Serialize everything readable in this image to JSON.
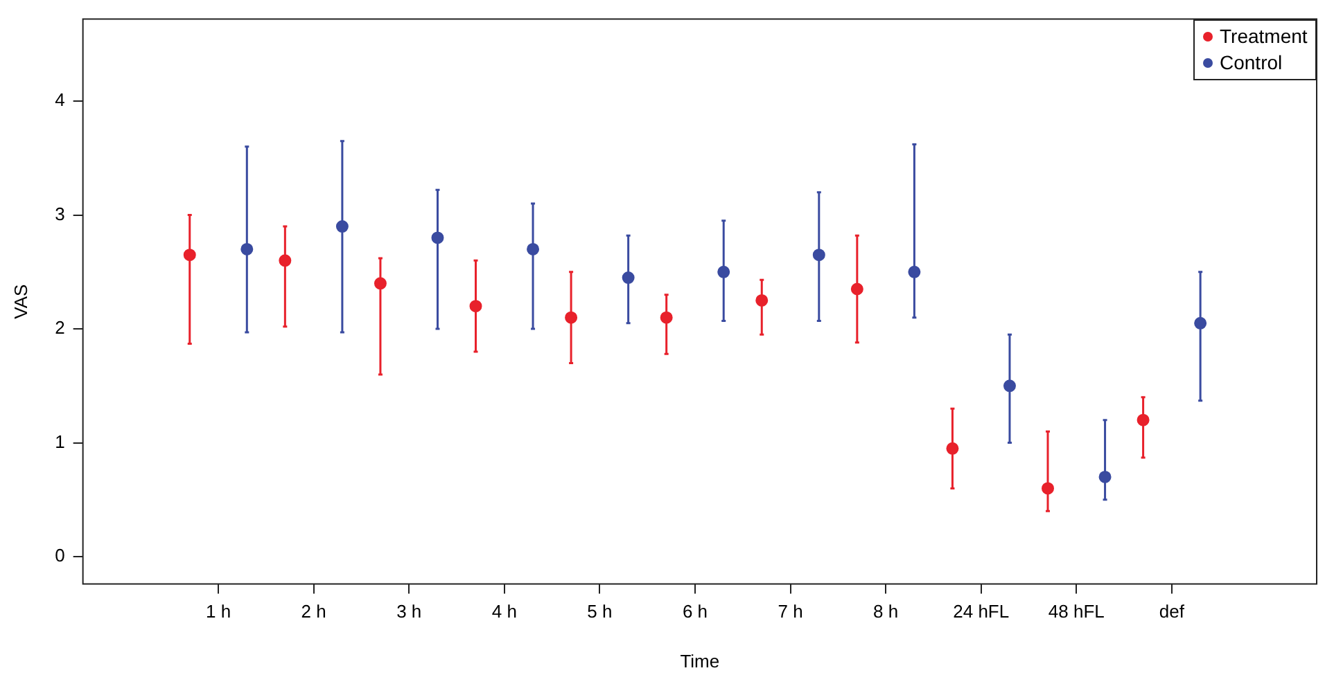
{
  "chart_data": {
    "type": "scatter",
    "xlabel": "Time",
    "ylabel": "VAS",
    "categories": [
      "1 h",
      "2 h",
      "3 h",
      "4 h",
      "5 h",
      "6 h",
      "7 h",
      "8 h",
      "24 hFL",
      "48 hFL",
      "def"
    ],
    "series": [
      {
        "name": "Treatment",
        "color": "#e8212b",
        "values": [
          2.65,
          2.6,
          2.4,
          2.2,
          2.1,
          2.1,
          2.25,
          2.35,
          0.95,
          0.6,
          1.2
        ],
        "errors": [
          [
            1.87,
            3.0
          ],
          [
            2.02,
            2.9
          ],
          [
            1.6,
            2.62
          ],
          [
            1.8,
            2.6
          ],
          [
            1.7,
            2.5
          ],
          [
            1.78,
            2.3
          ],
          [
            1.95,
            2.43
          ],
          [
            1.88,
            2.82
          ],
          [
            0.6,
            1.3
          ],
          [
            0.4,
            1.1
          ],
          [
            0.87,
            1.4
          ]
        ]
      },
      {
        "name": "Control",
        "color": "#3a4ba0",
        "values": [
          2.7,
          2.9,
          2.8,
          2.7,
          2.45,
          2.5,
          2.65,
          2.5,
          1.5,
          0.7,
          2.05
        ],
        "errors": [
          [
            1.97,
            3.6
          ],
          [
            1.97,
            3.65
          ],
          [
            2.0,
            3.22
          ],
          [
            2.0,
            3.1
          ],
          [
            2.05,
            2.82
          ],
          [
            2.07,
            2.95
          ],
          [
            2.07,
            3.2
          ],
          [
            2.1,
            3.62
          ],
          [
            1.0,
            1.95
          ],
          [
            0.5,
            1.2
          ],
          [
            1.37,
            2.5
          ]
        ]
      }
    ],
    "ylim": [
      -0.24,
      4.72
    ],
    "yticks": [
      0,
      1,
      2,
      3,
      4
    ],
    "grid": false,
    "legend": "top right",
    "marker": "circle"
  }
}
